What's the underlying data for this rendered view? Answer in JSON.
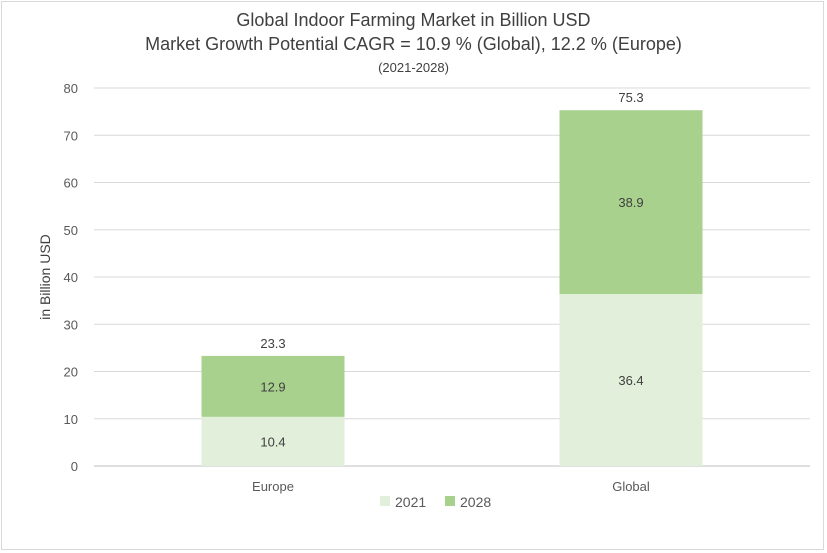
{
  "chart_data": {
    "type": "bar",
    "stacked": true,
    "title": "Global Indoor Farming Market in Billion USD",
    "subtitle": "Market Growth Potential CAGR = 10.9 % (Global), 12.2 % (Europe)",
    "subtitle2": "(2021-2028)",
    "xlabel": "",
    "ylabel": "in Billion USD",
    "ylim": [
      0,
      80
    ],
    "yticks": [
      0,
      10,
      20,
      30,
      40,
      50,
      60,
      70,
      80
    ],
    "categories": [
      "Europe",
      "Global"
    ],
    "series": [
      {
        "name": "2021",
        "values": [
          10.4,
          36.4
        ],
        "color": "#e2efda"
      },
      {
        "name": "2028",
        "values": [
          12.9,
          38.9
        ],
        "color": "#a9d18e"
      }
    ],
    "totals": [
      23.3,
      75.3
    ],
    "grid": true,
    "legend_position": "bottom"
  }
}
